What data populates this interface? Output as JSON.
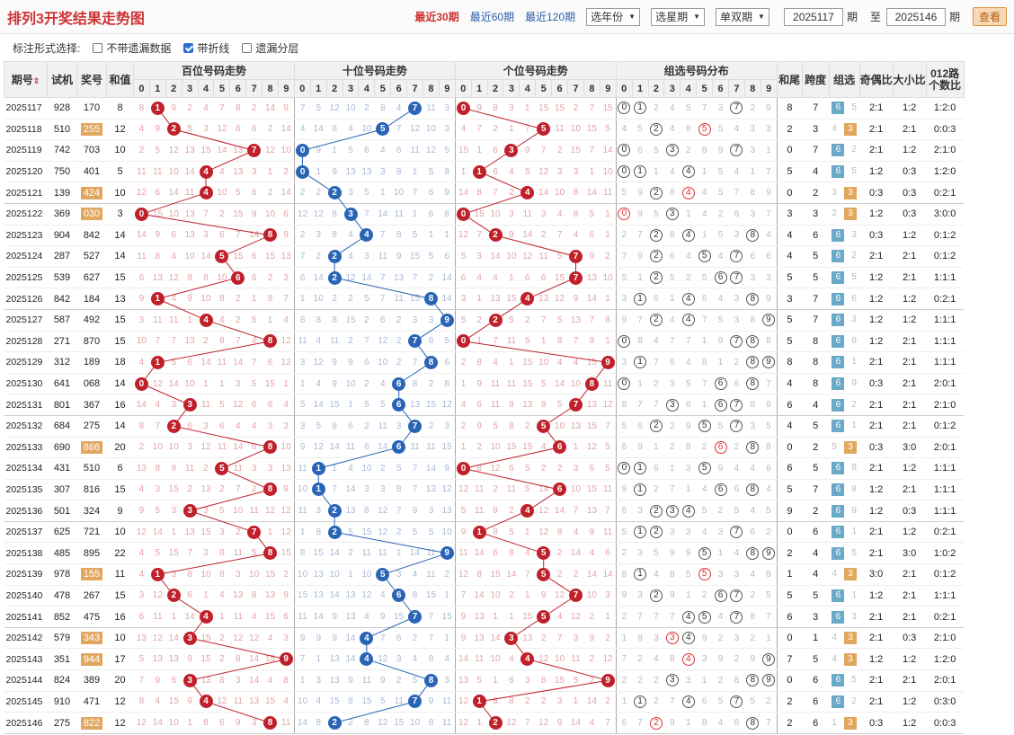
{
  "title": "排列3开奖结果走势图",
  "links": [
    "最近30期",
    "最近60期",
    "最近120期"
  ],
  "selects": [
    "选年份",
    "选星期",
    "单双期"
  ],
  "range": {
    "from": "2025117",
    "period1": "期",
    "to_label": "至",
    "to": "2025146",
    "period2": "期"
  },
  "view_btn": "查看",
  "options": {
    "label": "标注形式选择:",
    "o1": "不带遗漏数据",
    "o2": "带折线",
    "o3": "遗漏分层"
  },
  "headers": {
    "issue": "期号",
    "shiji": "试机",
    "jianghao": "奖号",
    "hezhi": "和值",
    "bai": "百位号码走势",
    "shi": "十位号码走势",
    "ge": "个位号码走势",
    "zx": "组选号码分布",
    "hewei": "和尾",
    "kuadu": "跨度",
    "zuxuan": "组选",
    "jiou": "奇偶比",
    "daxiao": "大小比",
    "lu012": "012路个数比"
  },
  "digits": [
    "0",
    "1",
    "2",
    "3",
    "4",
    "5",
    "6",
    "7",
    "8",
    "9"
  ],
  "rows": [
    {
      "issue": "2025117",
      "sj": "928",
      "jh": "170",
      "hz": "8",
      "hw": "8",
      "kd": "7",
      "zx": "6",
      "jo": "2:1",
      "dx": "1:2",
      "lr": "1:2:0"
    },
    {
      "issue": "2025118",
      "sj": "510",
      "jh": "255",
      "hz": "12",
      "hw": "2",
      "kd": "3",
      "zx": "3",
      "jo": "2:1",
      "dx": "2:1",
      "lr": "0:0:3"
    },
    {
      "issue": "2025119",
      "sj": "742",
      "jh": "703",
      "hz": "10",
      "hw": "0",
      "kd": "7",
      "zx": "6",
      "jo": "2:1",
      "dx": "1:2",
      "lr": "2:1:0"
    },
    {
      "issue": "2025120",
      "sj": "750",
      "jh": "401",
      "hz": "5",
      "hw": "5",
      "kd": "4",
      "zx": "6",
      "jo": "1:2",
      "dx": "0:3",
      "lr": "1:2:0"
    },
    {
      "issue": "2025121",
      "sj": "139",
      "jh": "424",
      "hz": "10",
      "hw": "0",
      "kd": "2",
      "zx": "3",
      "jo": "0:3",
      "dx": "0:3",
      "lr": "0:2:1"
    },
    {
      "issue": "2025122",
      "sj": "369",
      "jh": "030",
      "hz": "3",
      "hw": "3",
      "kd": "3",
      "zx": "3",
      "jo": "1:2",
      "dx": "0:3",
      "lr": "3:0:0"
    },
    {
      "issue": "2025123",
      "sj": "904",
      "jh": "842",
      "hz": "14",
      "hw": "4",
      "kd": "6",
      "zx": "6",
      "jo": "0:3",
      "dx": "1:2",
      "lr": "0:1:2"
    },
    {
      "issue": "2025124",
      "sj": "287",
      "jh": "527",
      "hz": "14",
      "hw": "4",
      "kd": "5",
      "zx": "6",
      "jo": "2:1",
      "dx": "2:1",
      "lr": "0:1:2"
    },
    {
      "issue": "2025125",
      "sj": "539",
      "jh": "627",
      "hz": "15",
      "hw": "5",
      "kd": "5",
      "zx": "6",
      "jo": "1:2",
      "dx": "2:1",
      "lr": "1:1:1"
    },
    {
      "issue": "2025126",
      "sj": "842",
      "jh": "184",
      "hz": "13",
      "hw": "3",
      "kd": "7",
      "zx": "6",
      "jo": "1:2",
      "dx": "1:2",
      "lr": "0:2:1"
    },
    {
      "issue": "2025127",
      "sj": "587",
      "jh": "492",
      "hz": "15",
      "hw": "5",
      "kd": "7",
      "zx": "6",
      "jo": "1:2",
      "dx": "1:2",
      "lr": "1:1:1"
    },
    {
      "issue": "2025128",
      "sj": "271",
      "jh": "870",
      "hz": "15",
      "hw": "5",
      "kd": "8",
      "zx": "6",
      "jo": "1:2",
      "dx": "2:1",
      "lr": "1:1:1"
    },
    {
      "issue": "2025129",
      "sj": "312",
      "jh": "189",
      "hz": "18",
      "hw": "8",
      "kd": "8",
      "zx": "6",
      "jo": "2:1",
      "dx": "2:1",
      "lr": "1:1:1"
    },
    {
      "issue": "2025130",
      "sj": "641",
      "jh": "068",
      "hz": "14",
      "hw": "4",
      "kd": "8",
      "zx": "6",
      "jo": "0:3",
      "dx": "2:1",
      "lr": "2:0:1"
    },
    {
      "issue": "2025131",
      "sj": "801",
      "jh": "367",
      "hz": "16",
      "hw": "6",
      "kd": "4",
      "zx": "6",
      "jo": "2:1",
      "dx": "2:1",
      "lr": "2:1:0"
    },
    {
      "issue": "2025132",
      "sj": "684",
      "jh": "275",
      "hz": "14",
      "hw": "4",
      "kd": "5",
      "zx": "6",
      "jo": "2:1",
      "dx": "2:1",
      "lr": "0:1:2"
    },
    {
      "issue": "2025133",
      "sj": "690",
      "jh": "866",
      "hz": "20",
      "hw": "0",
      "kd": "2",
      "zx": "3",
      "jo": "0:3",
      "dx": "3:0",
      "lr": "2:0:1"
    },
    {
      "issue": "2025134",
      "sj": "431",
      "jh": "510",
      "hz": "6",
      "hw": "6",
      "kd": "5",
      "zx": "6",
      "jo": "2:1",
      "dx": "1:2",
      "lr": "1:1:1"
    },
    {
      "issue": "2025135",
      "sj": "307",
      "jh": "816",
      "hz": "15",
      "hw": "5",
      "kd": "7",
      "zx": "6",
      "jo": "1:2",
      "dx": "2:1",
      "lr": "1:1:1"
    },
    {
      "issue": "2025136",
      "sj": "501",
      "jh": "324",
      "hz": "9",
      "hw": "9",
      "kd": "2",
      "zx": "6",
      "jo": "1:2",
      "dx": "0:3",
      "lr": "1:1:1"
    },
    {
      "issue": "2025137",
      "sj": "625",
      "jh": "721",
      "hz": "10",
      "hw": "0",
      "kd": "6",
      "zx": "6",
      "jo": "2:1",
      "dx": "1:2",
      "lr": "0:2:1"
    },
    {
      "issue": "2025138",
      "sj": "485",
      "jh": "895",
      "hz": "22",
      "hw": "2",
      "kd": "4",
      "zx": "6",
      "jo": "2:1",
      "dx": "3:0",
      "lr": "1:0:2"
    },
    {
      "issue": "2025139",
      "sj": "978",
      "jh": "155",
      "hz": "11",
      "hw": "1",
      "kd": "4",
      "zx": "3",
      "jo": "3:0",
      "dx": "2:1",
      "lr": "0:1:2"
    },
    {
      "issue": "2025140",
      "sj": "478",
      "jh": "267",
      "hz": "15",
      "hw": "5",
      "kd": "5",
      "zx": "6",
      "jo": "1:2",
      "dx": "2:1",
      "lr": "1:1:1"
    },
    {
      "issue": "2025141",
      "sj": "852",
      "jh": "475",
      "hz": "16",
      "hw": "6",
      "kd": "3",
      "zx": "6",
      "jo": "2:1",
      "dx": "2:1",
      "lr": "0:2:1"
    },
    {
      "issue": "2025142",
      "sj": "579",
      "jh": "343",
      "hz": "10",
      "hw": "0",
      "kd": "1",
      "zx": "3",
      "jo": "2:1",
      "dx": "0:3",
      "lr": "2:1:0"
    },
    {
      "issue": "2025143",
      "sj": "351",
      "jh": "944",
      "hz": "17",
      "hw": "7",
      "kd": "5",
      "zx": "3",
      "jo": "1:2",
      "dx": "1:2",
      "lr": "1:2:0"
    },
    {
      "issue": "2025144",
      "sj": "824",
      "jh": "389",
      "hz": "20",
      "hw": "0",
      "kd": "6",
      "zx": "6",
      "jo": "2:1",
      "dx": "2:1",
      "lr": "2:0:1"
    },
    {
      "issue": "2025145",
      "sj": "910",
      "jh": "471",
      "hz": "12",
      "hw": "2",
      "kd": "6",
      "zx": "6",
      "jo": "2:1",
      "dx": "1:2",
      "lr": "0:3:0"
    },
    {
      "issue": "2025146",
      "sj": "275",
      "jh": "822",
      "hz": "12",
      "hw": "2",
      "kd": "6",
      "zx": "3",
      "jo": "0:3",
      "dx": "1:2",
      "lr": "0:0:3"
    }
  ],
  "colors": {
    "red_ball": "#c0202a",
    "blue_ball": "#2a64b5",
    "title": "#cc3333",
    "tag_orange": "#e2a75f",
    "tag_teal": "#6aa9c8"
  }
}
